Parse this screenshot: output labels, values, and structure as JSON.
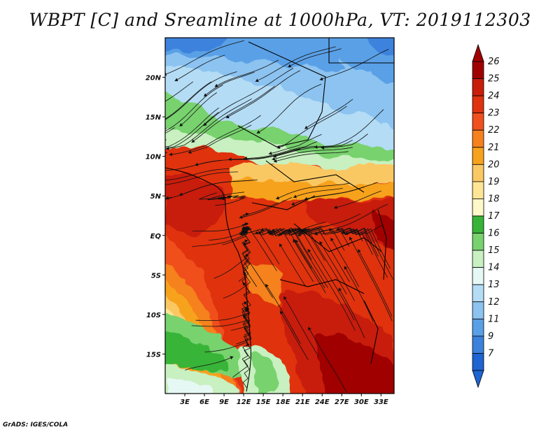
{
  "title": "WBPT [C] and Sreamline at 1000hPa, VT: 2019112303",
  "credit": "GrADS: IGES/COLA",
  "map": {
    "lon_range": [
      0,
      35
    ],
    "lat_range": [
      -20,
      25
    ],
    "lat_ticks": [
      {
        "value": 20,
        "label": "20N"
      },
      {
        "value": 15,
        "label": "15N"
      },
      {
        "value": 10,
        "label": "10N"
      },
      {
        "value": 5,
        "label": "5N"
      },
      {
        "value": 0,
        "label": "EQ"
      },
      {
        "value": -5,
        "label": "5S"
      },
      {
        "value": -10,
        "label": "10S"
      },
      {
        "value": -15,
        "label": "15S"
      }
    ],
    "lon_ticks": [
      {
        "value": 3,
        "label": "3E"
      },
      {
        "value": 6,
        "label": "6E"
      },
      {
        "value": 9,
        "label": "9E"
      },
      {
        "value": 12,
        "label": "12E"
      },
      {
        "value": 15,
        "label": "15E"
      },
      {
        "value": 18,
        "label": "18E"
      },
      {
        "value": 21,
        "label": "21E"
      },
      {
        "value": 24,
        "label": "24E"
      },
      {
        "value": 27,
        "label": "27E"
      },
      {
        "value": 30,
        "label": "30E"
      },
      {
        "value": 33,
        "label": "33E"
      }
    ]
  },
  "colorbar": {
    "levels": [
      {
        "label": "26",
        "color": "#a00000"
      },
      {
        "label": "25",
        "color": "#c81e0a"
      },
      {
        "label": "24",
        "color": "#e0320f"
      },
      {
        "label": "23",
        "color": "#f0501e"
      },
      {
        "label": "22",
        "color": "#f5821e"
      },
      {
        "label": "21",
        "color": "#f7a21e"
      },
      {
        "label": "20",
        "color": "#fac864"
      },
      {
        "label": "19",
        "color": "#fce696"
      },
      {
        "label": "18",
        "color": "#fff8c8"
      },
      {
        "label": "17",
        "color": "#37b437"
      },
      {
        "label": "16",
        "color": "#78d26e"
      },
      {
        "label": "15",
        "color": "#c8f0c0"
      },
      {
        "label": "14",
        "color": "#e6f8f4"
      },
      {
        "label": "13",
        "color": "#b4dcf5"
      },
      {
        "label": "12",
        "color": "#8cc3f0"
      },
      {
        "label": "11",
        "color": "#5aa0e6"
      },
      {
        "label": "9",
        "color": "#3c82dc"
      },
      {
        "label": "7",
        "color": "#1e64d2"
      }
    ],
    "top_arrow_color": "#a00000",
    "bottom_arrow_color": "#1e64d2"
  }
}
